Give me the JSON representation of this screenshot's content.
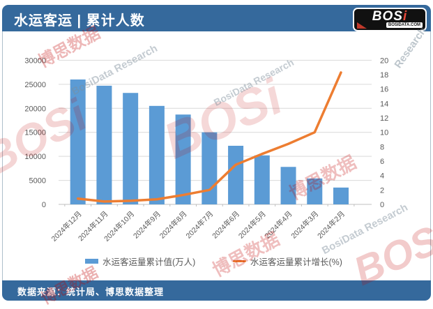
{
  "header": {
    "title": "水运客运 | 累计人数"
  },
  "logo": {
    "name_bos": "BOS",
    "name_i": "i",
    "site": "BOSIDATA.COM"
  },
  "footer": {
    "source": "数据来源：统计局、博思数据整理"
  },
  "legend": {
    "bars": "水运客运量累计值(万人)",
    "line": "水运客运量累计增长(%)"
  },
  "watermarks": {
    "bosi": "BOSi",
    "cn": "博思数据",
    "research": "BosiData Research",
    "site": "BOSIDATA.COM",
    "research_short": "Research"
  },
  "chart_data": {
    "type": "combo",
    "title": "水运客运 | 累计人数",
    "categories": [
      "2024年12月",
      "2024年11月",
      "2024年10月",
      "2024年9月",
      "2024年8月",
      "2024年7月",
      "2024年6月",
      "2024年5月",
      "2024年4月",
      "2024年3月",
      "2024年2月"
    ],
    "series": [
      {
        "name": "水运客运量累计值(万人)",
        "type": "bar",
        "axis": "left",
        "color": "#5b9bd5",
        "values": [
          26000,
          24700,
          23200,
          20500,
          18700,
          15000,
          12200,
          10200,
          7800,
          5400,
          3500
        ]
      },
      {
        "name": "水运客运量累计增长(%)",
        "type": "line",
        "axis": "right",
        "color": "#ed7d31",
        "values": [
          0.8,
          0.4,
          0.5,
          0.7,
          1.3,
          2.0,
          5.5,
          7.0,
          8.4,
          10.0,
          18.3
        ]
      }
    ],
    "left_axis": {
      "min": 0,
      "max": 30000,
      "step": 5000
    },
    "right_axis": {
      "min": 0,
      "max": 20,
      "step": 2
    },
    "grid": true,
    "legend_position": "bottom",
    "colors": {
      "grid": "#d9d9d9",
      "axis": "#bfbfbf",
      "tick_text": "#595959"
    }
  }
}
